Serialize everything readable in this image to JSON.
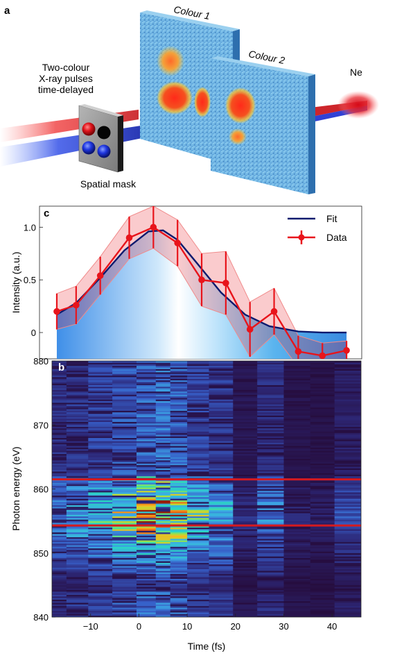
{
  "panel_a": {
    "letter": "a",
    "pulses_label": [
      "Two-colour",
      "X-ray pulses",
      "time-delayed"
    ],
    "mask_label": "Spatial mask",
    "screen1_label": "Colour 1",
    "screen2_label": "Colour 2",
    "target_label": "Ne"
  },
  "panel_b": {
    "letter": "b"
  },
  "panel_c": {
    "letter": "c"
  },
  "chart_data": [
    {
      "panel": "c",
      "type": "line",
      "ylabel": "Intensity (a.u.)",
      "xlim": [
        -18,
        46
      ],
      "ylim": [
        -0.25,
        1.2
      ],
      "yticks": [
        0,
        0.5,
        1.0
      ],
      "ytick_labels": [
        "0",
        "0.5",
        "1.0"
      ],
      "legend_position": "top-right",
      "series": [
        {
          "name": "Fit",
          "color": "#0a1a6e",
          "x": [
            -17,
            -13,
            -8,
            -3,
            2,
            5,
            8,
            12,
            17,
            22,
            27,
            33,
            38,
            43
          ],
          "y": [
            0.17,
            0.28,
            0.52,
            0.78,
            0.96,
            0.97,
            0.88,
            0.66,
            0.38,
            0.17,
            0.06,
            0.01,
            0.0,
            0.0
          ]
        },
        {
          "name": "Data",
          "color": "#e8141b",
          "x": [
            -17,
            -13,
            -8,
            -2,
            3,
            8,
            13,
            18,
            23,
            28,
            33,
            38,
            43
          ],
          "y": [
            0.2,
            0.26,
            0.54,
            0.9,
            1.0,
            0.85,
            0.5,
            0.47,
            0.03,
            0.2,
            -0.18,
            -0.22,
            -0.17
          ],
          "err": [
            0.17,
            0.18,
            0.18,
            0.2,
            0.2,
            0.22,
            0.25,
            0.3,
            0.26,
            0.22,
            0.15,
            0.12,
            0.09
          ]
        }
      ]
    },
    {
      "panel": "b",
      "type": "heatmap",
      "xlabel": "Time (fs)",
      "ylabel": "Photon energy (eV)",
      "xlim": [
        -18,
        46
      ],
      "ylim": [
        840,
        880
      ],
      "xticks": [
        -10,
        0,
        10,
        20,
        30,
        40
      ],
      "yticks": [
        840,
        850,
        860,
        870,
        880
      ],
      "colormap": "jet",
      "time_columns": [
        -17,
        -13,
        -8,
        -3,
        2,
        5,
        8,
        12,
        17,
        22,
        27,
        33,
        38,
        43
      ],
      "column_intensity": [
        0.42,
        0.48,
        0.58,
        0.72,
        0.85,
        0.92,
        0.82,
        0.6,
        0.5,
        0.15,
        0.38,
        0.12,
        0.1,
        0.25
      ],
      "reference_lines_ev": [
        861.5,
        854.3
      ],
      "reference_line_color": "#d51a1f"
    }
  ]
}
